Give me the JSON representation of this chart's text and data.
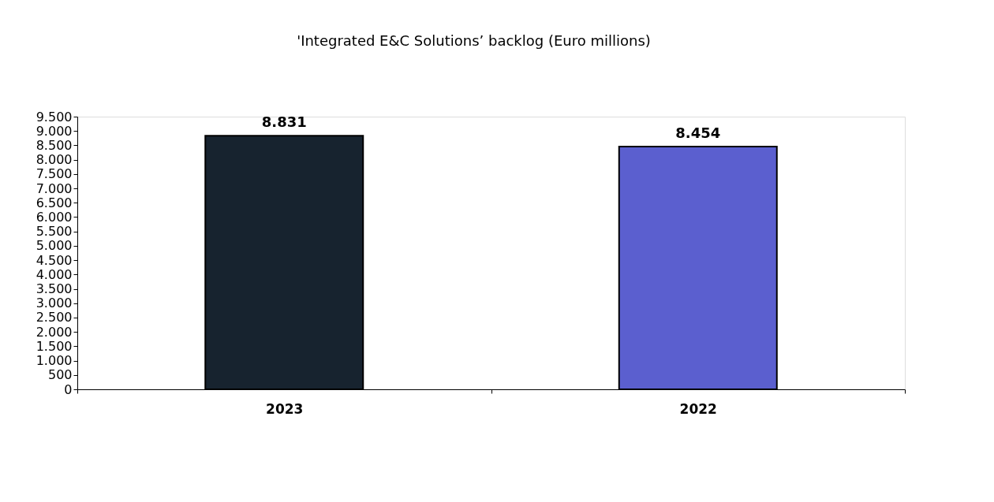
{
  "chart_data": {
    "type": "bar",
    "title": "'Integrated E&C Solutions’ backlog (Euro millions)",
    "categories": [
      "2023",
      "2022"
    ],
    "values": [
      8831,
      8454
    ],
    "colors": [
      "#17232f",
      "#5b5fcf"
    ],
    "value_labels": [
      "8.831",
      "8.454"
    ],
    "ylim": [
      0,
      9500
    ],
    "yticks": [
      0,
      500,
      {
        "value": 1000,
        "label": "1.000"
      },
      {
        "value": 1500,
        "label": "1.500"
      },
      {
        "value": 2000,
        "label": "2.000"
      },
      {
        "value": 2500,
        "label": "2.500"
      },
      {
        "value": 3000,
        "label": "3.000"
      },
      {
        "value": 3500,
        "label": "3.500"
      },
      {
        "value": 4000,
        "label": "4.000"
      },
      {
        "value": 4500,
        "label": "4.500"
      },
      {
        "value": 5000,
        "label": "5.000"
      },
      {
        "value": 5500,
        "label": "5.500"
      },
      {
        "value": 6000,
        "label": "6.000"
      },
      {
        "value": 6500,
        "label": "6.500"
      },
      {
        "value": 7000,
        "label": "7.000"
      },
      {
        "value": 7500,
        "label": "7.500"
      },
      {
        "value": 8000,
        "label": "8.000"
      },
      {
        "value": 8500,
        "label": "8.500"
      },
      {
        "value": 9000,
        "label": "9.000"
      },
      {
        "value": 9500,
        "label": "9.500"
      }
    ],
    "grid": false
  }
}
